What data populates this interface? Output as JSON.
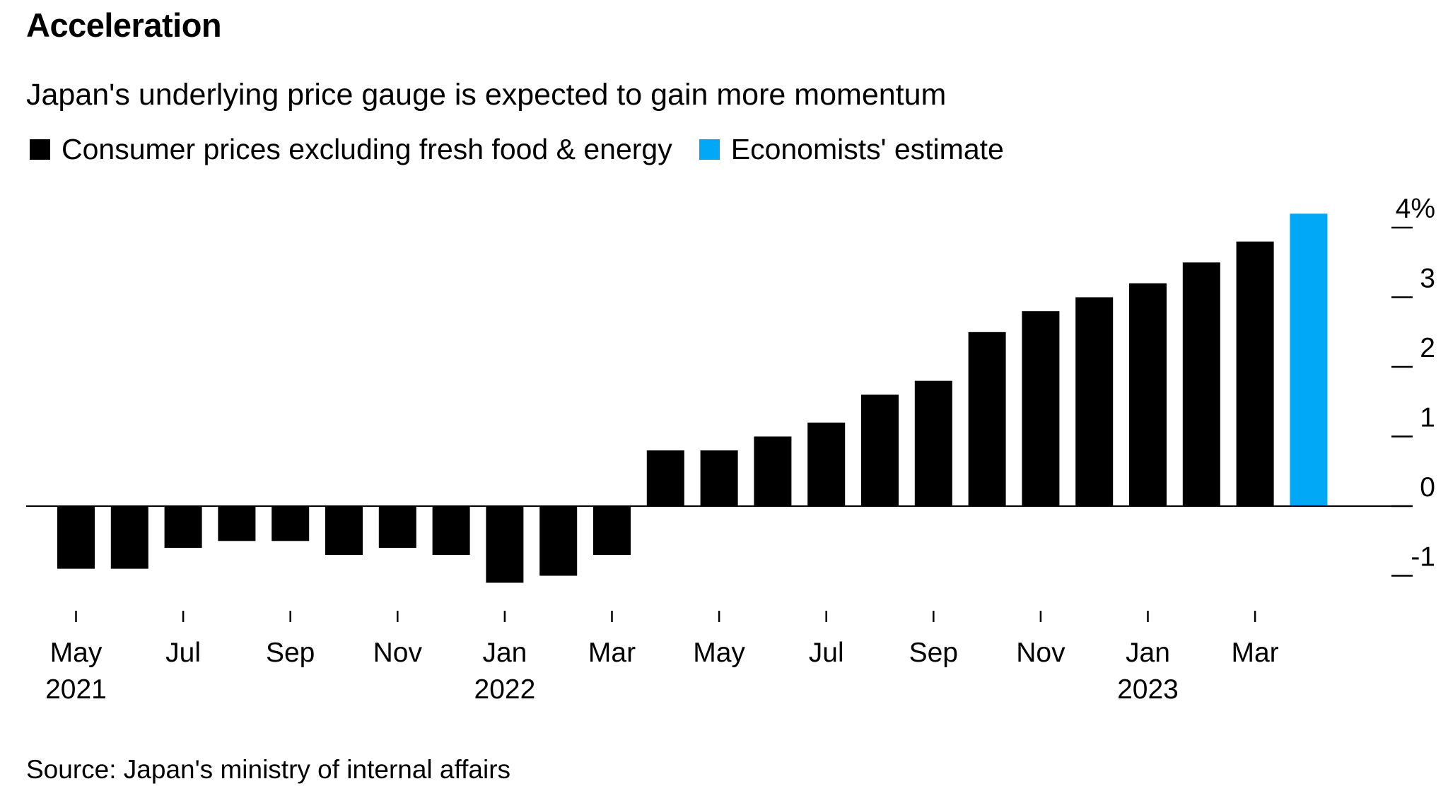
{
  "title": "Acceleration",
  "subtitle": "Japan's underlying price gauge is expected to gain more momentum",
  "legend": [
    {
      "label": "Consumer prices excluding fresh food & energy",
      "color": "#000000"
    },
    {
      "label": "Economists' estimate",
      "color": "#00a8f5"
    }
  ],
  "source": "Source: Japan's ministry of internal affairs",
  "chart_data": {
    "type": "bar",
    "categories": [
      "2021-05",
      "2021-06",
      "2021-07",
      "2021-08",
      "2021-09",
      "2021-10",
      "2021-11",
      "2021-12",
      "2022-01",
      "2022-02",
      "2022-03",
      "2022-04",
      "2022-05",
      "2022-06",
      "2022-07",
      "2022-08",
      "2022-09",
      "2022-10",
      "2022-11",
      "2022-12",
      "2023-01",
      "2023-02",
      "2023-03",
      "2023-04"
    ],
    "series": [
      {
        "name": "Consumer prices excluding fresh food & energy",
        "color": "#000000",
        "values": [
          -0.9,
          -0.9,
          -0.6,
          -0.5,
          -0.5,
          -0.7,
          -0.6,
          -0.7,
          -1.1,
          -1.0,
          -0.7,
          0.8,
          0.8,
          1.0,
          1.2,
          1.6,
          1.8,
          2.5,
          2.8,
          3.0,
          3.2,
          3.5,
          3.8,
          null
        ]
      },
      {
        "name": "Economists' estimate",
        "color": "#00a8f5",
        "values": [
          null,
          null,
          null,
          null,
          null,
          null,
          null,
          null,
          null,
          null,
          null,
          null,
          null,
          null,
          null,
          null,
          null,
          null,
          null,
          null,
          null,
          null,
          null,
          4.2
        ]
      }
    ],
    "yticks": [
      -1,
      0,
      1,
      2,
      3,
      4
    ],
    "ytick_labels": [
      "-1",
      "0",
      "1",
      "2",
      "3",
      "4%"
    ],
    "ylim": [
      -1.1,
      4.2
    ],
    "xticks": [
      {
        "category": "2021-05",
        "label": "May",
        "year": "2021"
      },
      {
        "category": "2021-07",
        "label": "Jul"
      },
      {
        "category": "2021-09",
        "label": "Sep"
      },
      {
        "category": "2021-11",
        "label": "Nov"
      },
      {
        "category": "2022-01",
        "label": "Jan",
        "year": "2022"
      },
      {
        "category": "2022-03",
        "label": "Mar"
      },
      {
        "category": "2022-05",
        "label": "May"
      },
      {
        "category": "2022-07",
        "label": "Jul"
      },
      {
        "category": "2022-09",
        "label": "Sep"
      },
      {
        "category": "2022-11",
        "label": "Nov"
      },
      {
        "category": "2023-01",
        "label": "Jan",
        "year": "2023"
      },
      {
        "category": "2023-03",
        "label": "Mar"
      }
    ],
    "y_axis_side": "right",
    "grid": false,
    "legend_position": "top-left"
  }
}
